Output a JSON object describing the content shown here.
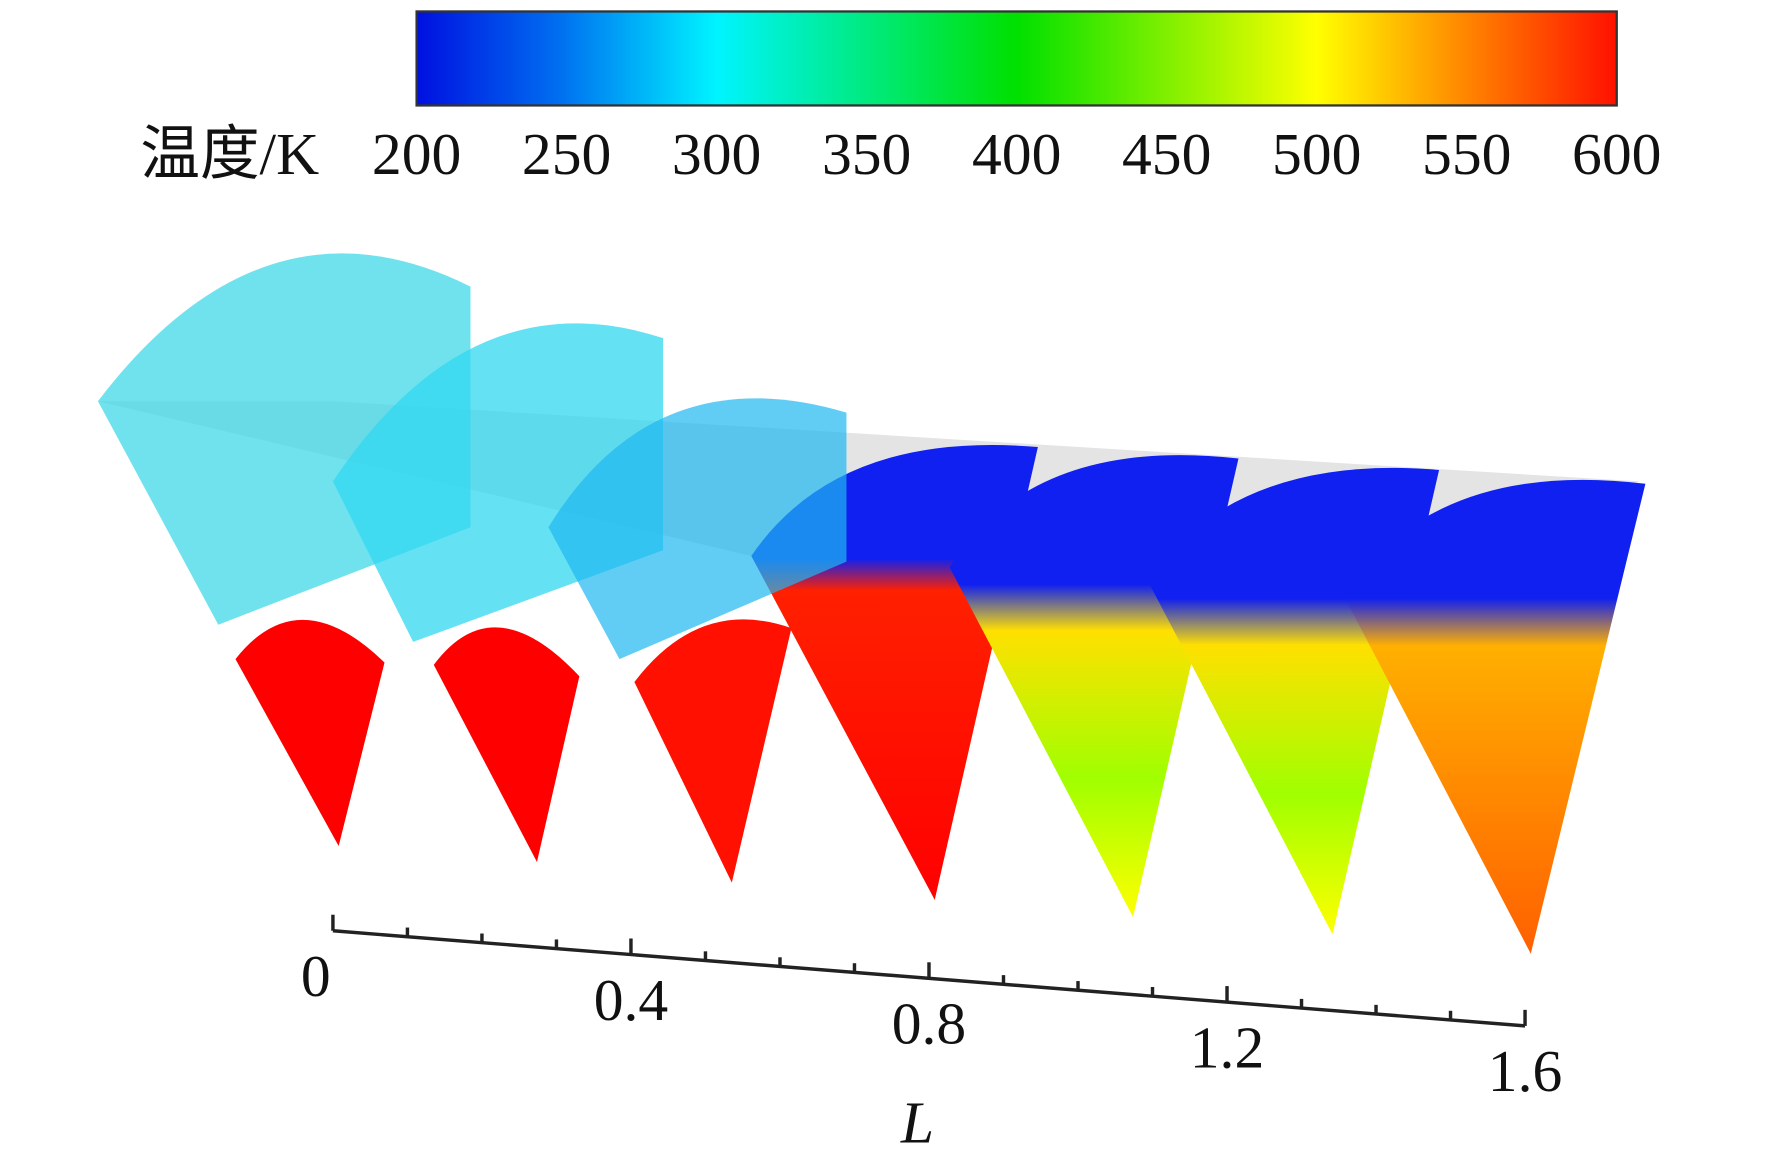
{
  "colorbar": {
    "label": "温度/K",
    "lim": [
      200,
      600
    ],
    "ticks": [
      200,
      250,
      300,
      350,
      400,
      450,
      500,
      550,
      600
    ]
  },
  "axis": {
    "label": "L",
    "lim": [
      0,
      1.6
    ],
    "ticks": [
      0,
      0.4,
      0.8,
      1.2,
      1.6
    ],
    "minor_ticks": [
      0.1,
      0.2,
      0.3,
      0.5,
      0.6,
      0.7,
      0.9,
      1.0,
      1.1,
      1.3,
      1.4,
      1.5
    ]
  }
}
